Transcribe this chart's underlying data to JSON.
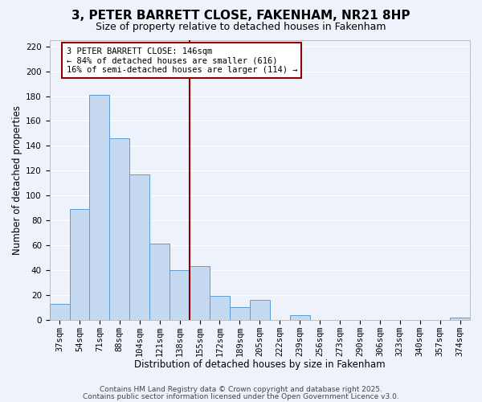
{
  "title": "3, PETER BARRETT CLOSE, FAKENHAM, NR21 8HP",
  "subtitle": "Size of property relative to detached houses in Fakenham",
  "xlabel": "Distribution of detached houses by size in Fakenham",
  "ylabel": "Number of detached properties",
  "categories": [
    "37sqm",
    "54sqm",
    "71sqm",
    "88sqm",
    "104sqm",
    "121sqm",
    "138sqm",
    "155sqm",
    "172sqm",
    "189sqm",
    "205sqm",
    "222sqm",
    "239sqm",
    "256sqm",
    "273sqm",
    "290sqm",
    "306sqm",
    "323sqm",
    "340sqm",
    "357sqm",
    "374sqm"
  ],
  "values": [
    13,
    89,
    181,
    146,
    117,
    61,
    40,
    43,
    19,
    10,
    16,
    0,
    4,
    0,
    0,
    0,
    0,
    0,
    0,
    0,
    2
  ],
  "bar_color": "#c5d9f1",
  "bar_edge_color": "#5b9bd5",
  "vline_index": 7,
  "vline_color": "#8b0000",
  "annotation_title": "3 PETER BARRETT CLOSE: 146sqm",
  "annotation_line2": "← 84% of detached houses are smaller (616)",
  "annotation_line3": "16% of semi-detached houses are larger (114) →",
  "annotation_box_color": "#8b0000",
  "ylim": [
    0,
    225
  ],
  "yticks": [
    0,
    20,
    40,
    60,
    80,
    100,
    120,
    140,
    160,
    180,
    200,
    220
  ],
  "footer1": "Contains HM Land Registry data © Crown copyright and database right 2025.",
  "footer2": "Contains public sector information licensed under the Open Government Licence v3.0.",
  "background_color": "#eef2fb",
  "grid_color": "#ffffff",
  "title_fontsize": 11,
  "subtitle_fontsize": 9,
  "axis_label_fontsize": 8.5,
  "tick_fontsize": 7.5,
  "footer_fontsize": 6.5,
  "annotation_fontsize": 7.5
}
